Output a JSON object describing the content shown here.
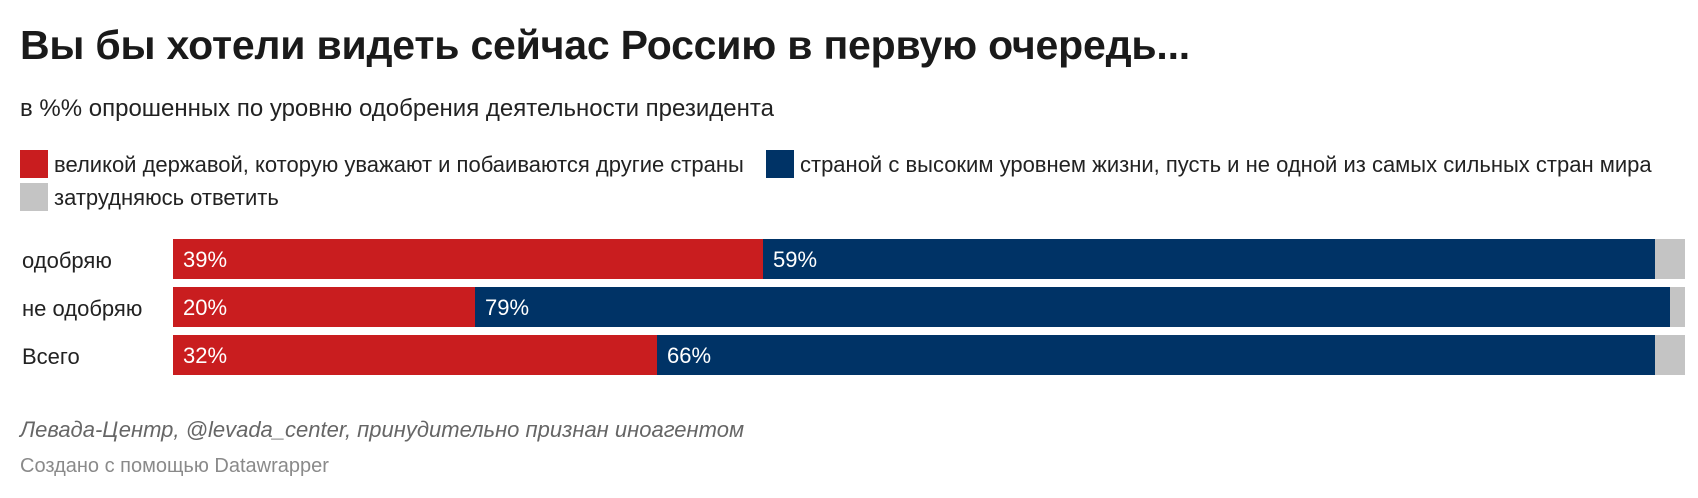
{
  "title": "Вы бы хотели видеть сейчас Россию в первую очередь...",
  "subtitle": "в %% опрошенных по уровню одобрения деятельности президента",
  "source": "Левада-Центр, @levada_center, принудительно признан иноагентом",
  "credit": "Создано с помощью Datawrapper",
  "chart_data": {
    "type": "bar",
    "orientation": "horizontal",
    "stacked": true,
    "categories": [
      "одобряю",
      "не одобряю",
      "Всего"
    ],
    "series": [
      {
        "name": "великой державой, которую уважают и побаиваются другие страны",
        "color": "#c91d1f",
        "values": [
          39,
          20,
          32
        ],
        "labels": [
          "39%",
          "20%",
          "32%"
        ]
      },
      {
        "name": "страной с высоким уровнем жизни, пусть и не одной из самых сильных стран мира",
        "color": "#003366",
        "values": [
          59,
          79,
          66
        ],
        "labels": [
          "59%",
          "79%",
          "66%"
        ]
      },
      {
        "name": "затрудняюсь ответить",
        "color": "#c4c4c4",
        "values": [
          2,
          1,
          2
        ]
      }
    ],
    "xlim": [
      0,
      100
    ],
    "legend": "top",
    "grid": false
  }
}
